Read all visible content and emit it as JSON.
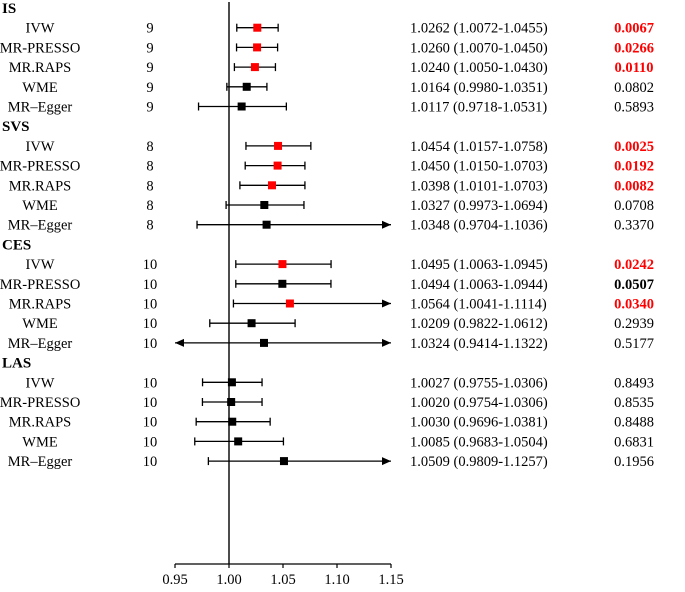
{
  "chart_data": {
    "type": "forest",
    "xlim": [
      0.95,
      1.15
    ],
    "xticks": [
      "0.95",
      "1.00",
      "1.05",
      "1.10",
      "1.15"
    ],
    "ref_line": 1.0,
    "colors": {
      "significant_marker": "#ff0000",
      "marker": "#000000",
      "significant_text": "#ff0000",
      "text": "#000000"
    },
    "groups": [
      {
        "name": "IS",
        "rows": [
          {
            "method": "IVW",
            "n": "9",
            "est": 1.0262,
            "lo": 1.0072,
            "hi": 1.0455,
            "ci_text": "1.0262 (1.0072-1.0455)",
            "p": "0.0067",
            "p_style": "red",
            "marker": "red",
            "arrow_left": false,
            "arrow_right": false
          },
          {
            "method": "MR-PRESSO",
            "n": "9",
            "est": 1.026,
            "lo": 1.007,
            "hi": 1.045,
            "ci_text": "1.0260 (1.0070-1.0450)",
            "p": "0.0266",
            "p_style": "red",
            "marker": "red",
            "arrow_left": false,
            "arrow_right": false
          },
          {
            "method": "MR.RAPS",
            "n": "9",
            "est": 1.024,
            "lo": 1.005,
            "hi": 1.043,
            "ci_text": "1.0240 (1.0050-1.0430)",
            "p": "0.0110",
            "p_style": "red",
            "marker": "red",
            "arrow_left": false,
            "arrow_right": false
          },
          {
            "method": "WME",
            "n": "9",
            "est": 1.0164,
            "lo": 0.998,
            "hi": 1.0351,
            "ci_text": "1.0164 (0.9980-1.0351)",
            "p": "0.0802",
            "p_style": "normal",
            "marker": "black",
            "arrow_left": false,
            "arrow_right": false
          },
          {
            "method": "MR–Egger",
            "n": "9",
            "est": 1.0117,
            "lo": 0.9718,
            "hi": 1.0531,
            "ci_text": "1.0117 (0.9718-1.0531)",
            "p": "0.5893",
            "p_style": "normal",
            "marker": "black",
            "arrow_left": false,
            "arrow_right": false
          }
        ]
      },
      {
        "name": "SVS",
        "rows": [
          {
            "method": "IVW",
            "n": "8",
            "est": 1.0454,
            "lo": 1.0157,
            "hi": 1.0758,
            "ci_text": "1.0454 (1.0157-1.0758)",
            "p": "0.0025",
            "p_style": "red",
            "marker": "red",
            "arrow_left": false,
            "arrow_right": false
          },
          {
            "method": "MR-PRESSO",
            "n": "8",
            "est": 1.045,
            "lo": 1.015,
            "hi": 1.0703,
            "ci_text": "1.0450 (1.0150-1.0703)",
            "p": "0.0192",
            "p_style": "red",
            "marker": "red",
            "arrow_left": false,
            "arrow_right": false
          },
          {
            "method": "MR.RAPS",
            "n": "8",
            "est": 1.0398,
            "lo": 1.0101,
            "hi": 1.0703,
            "ci_text": "1.0398 (1.0101-1.0703)",
            "p": "0.0082",
            "p_style": "red",
            "marker": "red",
            "arrow_left": false,
            "arrow_right": false
          },
          {
            "method": "WME",
            "n": "8",
            "est": 1.0327,
            "lo": 0.9973,
            "hi": 1.0694,
            "ci_text": "1.0327 (0.9973-1.0694)",
            "p": "0.0708",
            "p_style": "normal",
            "marker": "black",
            "arrow_left": false,
            "arrow_right": false
          },
          {
            "method": "MR–Egger",
            "n": "8",
            "est": 1.0348,
            "lo": 0.9704,
            "hi": 1.1036,
            "ci_text": "1.0348 (0.9704-1.1036)",
            "p": "0.3370",
            "p_style": "normal",
            "marker": "black",
            "arrow_left": false,
            "arrow_right": true
          }
        ]
      },
      {
        "name": "CES",
        "rows": [
          {
            "method": "IVW",
            "n": "10",
            "est": 1.0495,
            "lo": 1.0063,
            "hi": 1.0945,
            "ci_text": "1.0495 (1.0063-1.0945)",
            "p": "0.0242",
            "p_style": "red",
            "marker": "red",
            "arrow_left": false,
            "arrow_right": false
          },
          {
            "method": "MR-PRESSO",
            "n": "10",
            "est": 1.0494,
            "lo": 1.0063,
            "hi": 1.0944,
            "ci_text": "1.0494 (1.0063-1.0944)",
            "p": "0.0507",
            "p_style": "bold",
            "marker": "black",
            "arrow_left": false,
            "arrow_right": false
          },
          {
            "method": "MR.RAPS",
            "n": "10",
            "est": 1.0564,
            "lo": 1.0041,
            "hi": 1.1114,
            "ci_text": "1.0564 (1.0041-1.1114)",
            "p": "0.0340",
            "p_style": "red",
            "marker": "red",
            "arrow_left": false,
            "arrow_right": true
          },
          {
            "method": "WME",
            "n": "10",
            "est": 1.0209,
            "lo": 0.9822,
            "hi": 1.0612,
            "ci_text": "1.0209 (0.9822-1.0612)",
            "p": "0.2939",
            "p_style": "normal",
            "marker": "black",
            "arrow_left": false,
            "arrow_right": false
          },
          {
            "method": "MR–Egger",
            "n": "10",
            "est": 1.0324,
            "lo": 0.9414,
            "hi": 1.1322,
            "ci_text": "1.0324 (0.9414-1.1322)",
            "p": "0.5177",
            "p_style": "normal",
            "marker": "black",
            "arrow_left": true,
            "arrow_right": true
          }
        ]
      },
      {
        "name": "LAS",
        "rows": [
          {
            "method": "IVW",
            "n": "10",
            "est": 1.0027,
            "lo": 0.9755,
            "hi": 1.0306,
            "ci_text": "1.0027 (0.9755-1.0306)",
            "p": "0.8493",
            "p_style": "normal",
            "marker": "black",
            "arrow_left": false,
            "arrow_right": false
          },
          {
            "method": "MR-PRESSO",
            "n": "10",
            "est": 1.002,
            "lo": 0.9754,
            "hi": 1.0306,
            "ci_text": "1.0020 (0.9754-1.0306)",
            "p": "0.8535",
            "p_style": "normal",
            "marker": "black",
            "arrow_left": false,
            "arrow_right": false
          },
          {
            "method": "MR.RAPS",
            "n": "10",
            "est": 1.003,
            "lo": 0.9696,
            "hi": 1.0381,
            "ci_text": "1.0030 (0.9696-1.0381)",
            "p": "0.8488",
            "p_style": "normal",
            "marker": "black",
            "arrow_left": false,
            "arrow_right": false
          },
          {
            "method": "WME",
            "n": "10",
            "est": 1.0085,
            "lo": 0.9683,
            "hi": 1.0504,
            "ci_text": "1.0085 (0.9683-1.0504)",
            "p": "0.6831",
            "p_style": "normal",
            "marker": "black",
            "arrow_left": false,
            "arrow_right": false
          },
          {
            "method": "MR–Egger",
            "n": "10",
            "est": 1.0509,
            "lo": 0.9809,
            "hi": 1.1257,
            "ci_text": "1.0509 (0.9809-1.1257)",
            "p": "0.1956",
            "p_style": "normal",
            "marker": "black",
            "arrow_left": false,
            "arrow_right": true
          }
        ]
      }
    ]
  }
}
